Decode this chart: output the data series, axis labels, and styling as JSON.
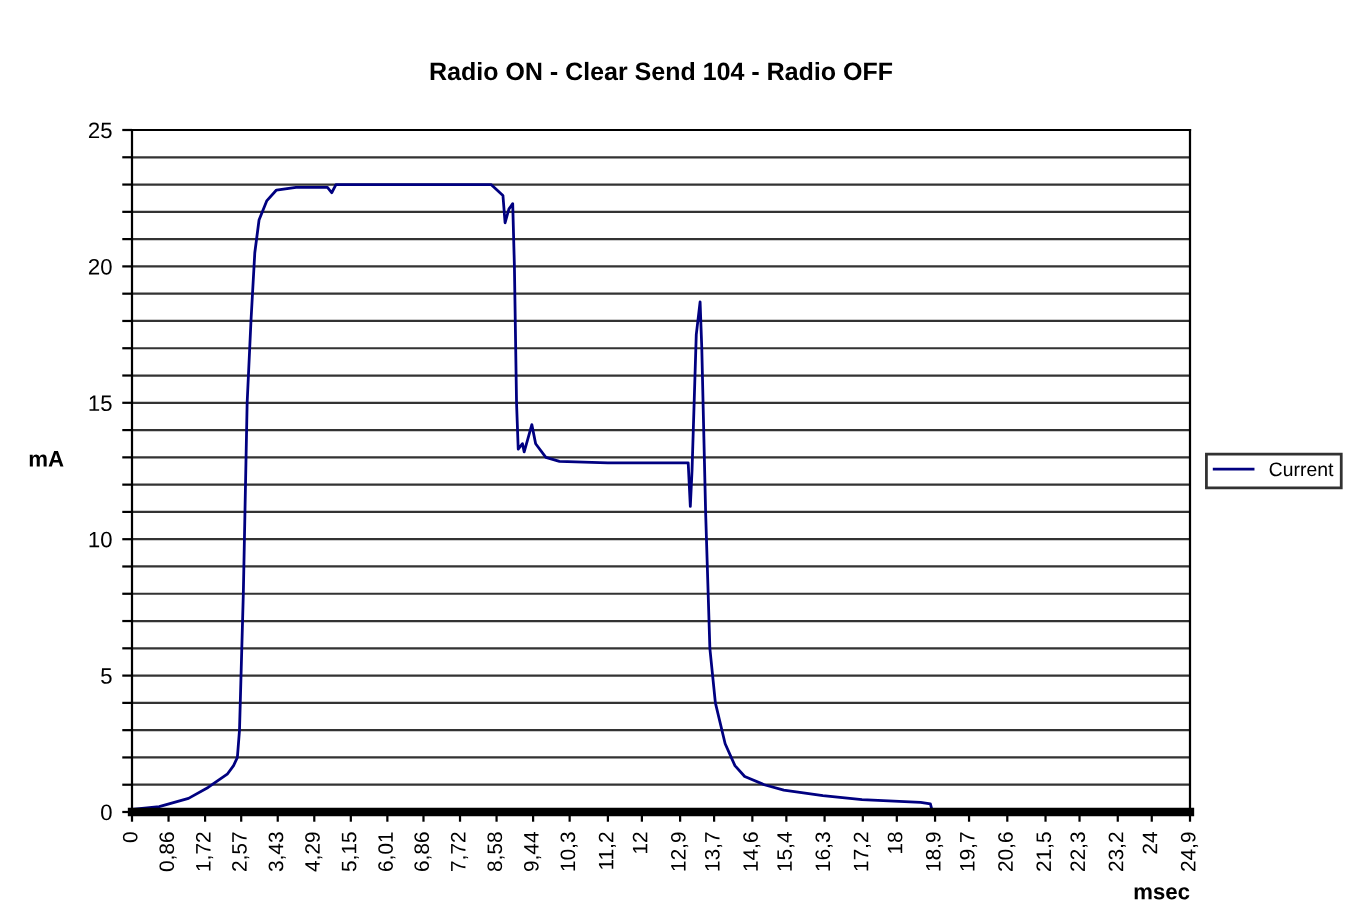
{
  "chart_data": {
    "type": "line",
    "title": "Radio ON - Clear Send 104 - Radio OFF",
    "xlabel": "msec",
    "ylabel": "mA",
    "series": [
      {
        "name": "Current",
        "color": "#000080",
        "x": [
          0,
          0.64,
          1.33,
          1.79,
          2.25,
          2.39,
          2.48,
          2.53,
          2.62,
          2.71,
          2.8,
          2.89,
          2.99,
          3.17,
          3.4,
          3.86,
          4.6,
          4.7,
          4.8,
          5.5,
          6.5,
          7.5,
          8.45,
          8.59,
          8.73,
          8.78,
          8.87,
          8.96,
          9.0,
          9.05,
          9.09,
          9.19,
          9.23,
          9.32,
          9.41,
          9.5,
          9.74,
          10.06,
          11.2,
          12.59,
          13.09,
          13.14,
          13.18,
          13.28,
          13.37,
          13.41,
          13.5,
          13.6,
          13.73,
          13.96,
          14.19,
          14.42,
          14.88,
          15.34,
          16.26,
          17.18,
          18.56,
          18.79,
          18.84
        ],
        "values": [
          0.1,
          0.2,
          0.5,
          0.9,
          1.4,
          1.7,
          2.0,
          3,
          8,
          15,
          18,
          20.5,
          21.7,
          22.4,
          22.8,
          22.9,
          22.9,
          22.7,
          23.0,
          23.0,
          23.0,
          23.0,
          23.0,
          22.8,
          22.6,
          21.6,
          22.1,
          22.3,
          20,
          15,
          13.3,
          13.5,
          13.2,
          13.7,
          14.2,
          13.5,
          13.0,
          12.85,
          12.8,
          12.8,
          12.8,
          11.2,
          12.5,
          17.5,
          18.7,
          17,
          11,
          6,
          4,
          2.5,
          1.7,
          1.3,
          1.0,
          0.8,
          0.6,
          0.45,
          0.35,
          0.3,
          0.0
        ]
      }
    ],
    "xlim": [
      0,
      24.9
    ],
    "xticks": [
      0,
      {
        "value": 0.86,
        "label": "0,86"
      },
      {
        "value": 1.72,
        "label": "1,72"
      },
      {
        "value": 2.57,
        "label": "2,57"
      },
      {
        "value": 3.43,
        "label": "3,43"
      },
      {
        "value": 4.29,
        "label": "4,29"
      },
      {
        "value": 5.15,
        "label": "5,15"
      },
      {
        "value": 6.01,
        "label": "6,01"
      },
      {
        "value": 6.86,
        "label": "6,86"
      },
      {
        "value": 7.72,
        "label": "7,72"
      },
      {
        "value": 8.58,
        "label": "8,58"
      },
      {
        "value": 9.44,
        "label": "9,44"
      },
      {
        "value": 10.3,
        "label": "10,3"
      },
      {
        "value": 11.2,
        "label": "11,2"
      },
      12,
      {
        "value": 12.9,
        "label": "12,9"
      },
      {
        "value": 13.7,
        "label": "13,7"
      },
      {
        "value": 14.6,
        "label": "14,6"
      },
      {
        "value": 15.4,
        "label": "15,4"
      },
      {
        "value": 16.3,
        "label": "16,3"
      },
      {
        "value": 17.2,
        "label": "17,2"
      },
      18,
      {
        "value": 18.9,
        "label": "18,9"
      },
      {
        "value": 19.7,
        "label": "19,7"
      },
      {
        "value": 20.6,
        "label": "20,6"
      },
      {
        "value": 21.5,
        "label": "21,5"
      },
      {
        "value": 22.3,
        "label": "22,3"
      },
      {
        "value": 23.2,
        "label": "23,2"
      },
      24,
      {
        "value": 24.9,
        "label": "24,9"
      }
    ],
    "ylim": [
      0,
      25
    ],
    "yticks": [
      0,
      {
        "value": 1,
        "label": null
      },
      {
        "value": 2,
        "label": null
      },
      {
        "value": 3,
        "label": null
      },
      {
        "value": 4,
        "label": null
      },
      5,
      {
        "value": 6,
        "label": null
      },
      {
        "value": 7,
        "label": null
      },
      {
        "value": 8,
        "label": null
      },
      {
        "value": 9,
        "label": null
      },
      10,
      {
        "value": 11,
        "label": null
      },
      {
        "value": 12,
        "label": null
      },
      {
        "value": 13,
        "label": null
      },
      {
        "value": 14,
        "label": null
      },
      15,
      {
        "value": 16,
        "label": null
      },
      {
        "value": 17,
        "label": null
      },
      {
        "value": 18,
        "label": null
      },
      {
        "value": 19,
        "label": null
      },
      20,
      {
        "value": 21,
        "label": null
      },
      {
        "value": 22,
        "label": null
      },
      {
        "value": 23,
        "label": null
      },
      {
        "value": 24,
        "label": null
      },
      25
    ],
    "grid": "y",
    "legend": "right",
    "marker": "none",
    "line_style": "solid"
  }
}
